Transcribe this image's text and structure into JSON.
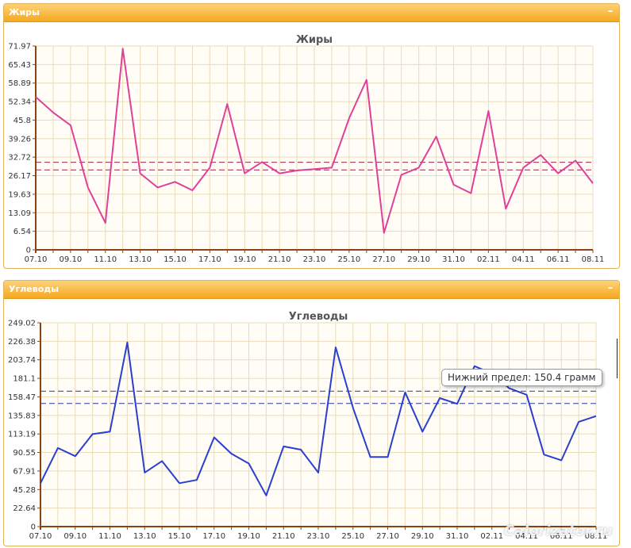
{
  "panels": [
    {
      "header": "Жиры",
      "collapse_label": "–"
    },
    {
      "header": "Углеводы",
      "collapse_label": "–"
    }
  ],
  "tooltip": "Нижний предел: 150.4 грамм",
  "watermark": "Calorizator.ru",
  "chart_data": [
    {
      "type": "line",
      "title": "Жиры",
      "color": "#e0409a",
      "limit_color": "#a0204e",
      "ylim": [
        0,
        71.97
      ],
      "ytick_labels": [
        "0",
        "6.54",
        "13.09",
        "19.63",
        "26.17",
        "32.72",
        "39.26",
        "45.8",
        "52.34",
        "58.89",
        "65.43",
        "71.97"
      ],
      "xtick_labels": [
        "07.10",
        "09.10",
        "11.10",
        "13.10",
        "15.10",
        "17.10",
        "19.10",
        "21.10",
        "23.10",
        "25.10",
        "27.10",
        "29.10",
        "31.10",
        "02.11",
        "04.11",
        "06.11",
        "08.11"
      ],
      "limits": [
        30.9,
        28.2
      ],
      "series": [
        {
          "values": [
            54,
            48.5,
            44,
            22,
            9.5,
            71,
            27,
            22,
            24,
            21,
            29,
            51.5,
            27,
            31,
            27,
            28,
            28.5,
            29,
            46.5,
            60,
            6,
            26.5,
            29,
            40,
            23,
            20,
            49,
            14.5,
            29,
            33.5,
            27,
            31.5,
            23.5
          ]
        }
      ]
    },
    {
      "type": "line",
      "title": "Углеводы",
      "color": "#2a3fcf",
      "limit_color": "#2a3b9a",
      "ylim": [
        0,
        249.02
      ],
      "ytick_labels": [
        "0",
        "22.64",
        "45.28",
        "67.91",
        "90.55",
        "113.19",
        "135.83",
        "158.47",
        "181.1",
        "203.74",
        "226.38",
        "249.02"
      ],
      "xtick_labels": [
        "07.10",
        "09.10",
        "11.10",
        "13.10",
        "15.10",
        "17.10",
        "19.10",
        "21.10",
        "23.10",
        "25.10",
        "27.10",
        "29.10",
        "31.10",
        "02.11",
        "04.11",
        "06.11",
        "08.11"
      ],
      "limits": [
        165.5,
        150.4
      ],
      "series": [
        {
          "values": [
            53,
            96,
            86,
            113,
            116,
            225,
            66,
            80,
            53,
            57,
            109,
            89,
            77,
            38,
            98,
            94,
            66,
            219,
            145,
            85,
            85,
            164,
            116,
            157,
            150,
            196,
            187,
            169,
            161,
            88,
            81,
            128,
            135
          ]
        }
      ]
    }
  ]
}
